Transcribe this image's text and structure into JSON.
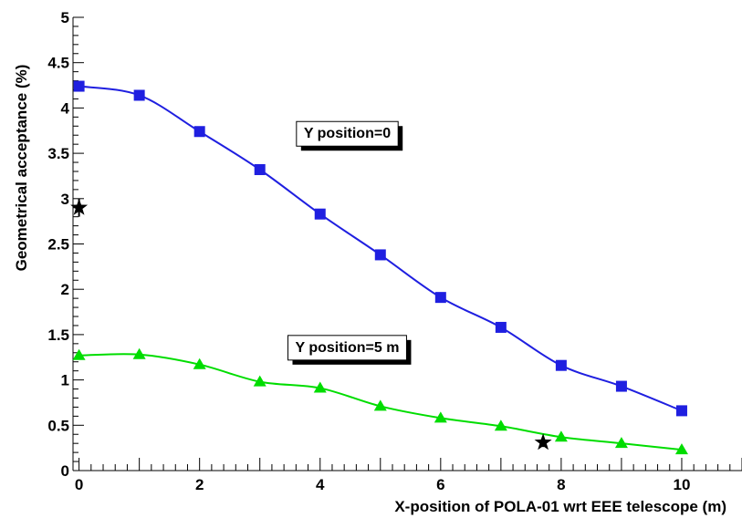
{
  "chart_data": {
    "type": "line",
    "xlabel": "X-position of POLA-01 wrt EEE telescope (m)",
    "ylabel": "Geometrical acceptance (%)",
    "xlim": [
      -0.1,
      11
    ],
    "ylim": [
      0,
      5
    ],
    "x_ticks": [
      0,
      2,
      4,
      6,
      8,
      10
    ],
    "y_ticks": [
      0,
      0.5,
      1,
      1.5,
      2,
      2.5,
      3,
      3.5,
      4,
      4.5,
      5
    ],
    "grid": false,
    "series": [
      {
        "name": "",
        "marker": "square",
        "color": "#1f1fe0",
        "x": [
          0,
          1,
          2,
          3,
          4,
          5,
          6,
          7,
          8,
          9,
          10
        ],
        "y": [
          4.24,
          4.14,
          3.74,
          3.32,
          2.83,
          2.38,
          1.91,
          1.58,
          1.16,
          0.93,
          0.66
        ]
      },
      {
        "name": "",
        "marker": "triangle",
        "color": "#00dd00",
        "x": [
          0,
          1,
          2,
          3,
          4,
          5,
          6,
          7,
          8,
          9,
          10
        ],
        "y": [
          1.27,
          1.28,
          1.17,
          0.98,
          0.91,
          0.71,
          0.58,
          0.49,
          0.37,
          0.3,
          0.23
        ]
      },
      {
        "name": "",
        "marker": "star",
        "color": "#000000",
        "x": [
          0,
          7.7
        ],
        "y": [
          2.9,
          0.31
        ],
        "yerr": [
          0.1,
          0.05
        ]
      }
    ],
    "annotations": [
      {
        "text": "Y position=0",
        "x": 4.45,
        "y": 3.73
      },
      {
        "text": "Y position=5 m",
        "x": 4.45,
        "y": 1.37
      }
    ]
  }
}
